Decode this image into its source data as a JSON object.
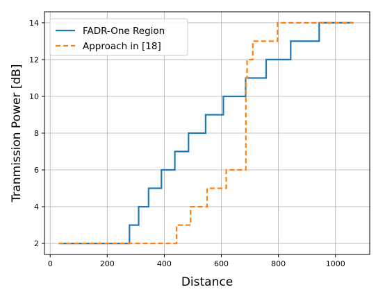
{
  "chart_data": {
    "type": "line",
    "xlabel": "Distance",
    "ylabel": "Tranmission Power [dB]",
    "xlim": [
      -20,
      1120
    ],
    "ylim": [
      1.4,
      14.6
    ],
    "xticks": [
      0,
      200,
      400,
      600,
      800,
      1000
    ],
    "yticks": [
      2,
      4,
      6,
      8,
      10,
      12,
      14
    ],
    "grid": true,
    "legend": "top-left",
    "series": [
      {
        "name": "FADR-One Region",
        "color": "#1f77b4",
        "style": "solid",
        "step": "post",
        "x": [
          30,
          278,
          310,
          345,
          390,
          437,
          485,
          545,
          607,
          685,
          757,
          843,
          943,
          1063
        ],
        "y": [
          2,
          3,
          4,
          5,
          6,
          7,
          8,
          9,
          10,
          11,
          12,
          13,
          14,
          14
        ]
      },
      {
        "name": "Approach in [18]",
        "color": "#ff7f0e",
        "style": "dashed",
        "step": "post",
        "x": [
          30,
          443,
          492,
          550,
          617,
          686,
          690,
          710,
          797,
          1063
        ],
        "y": [
          2,
          3,
          4,
          5,
          6,
          11,
          12,
          13,
          14,
          14
        ]
      }
    ]
  }
}
